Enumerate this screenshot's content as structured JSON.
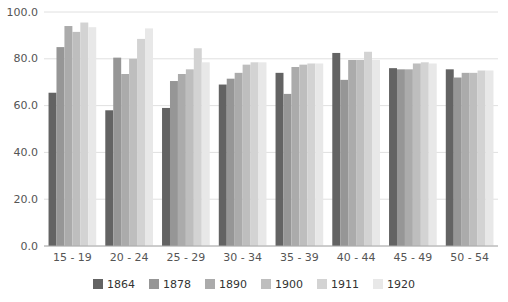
{
  "chart_data": {
    "type": "bar",
    "categories": [
      "15 - 19",
      "20 - 24",
      "25 - 29",
      "30 - 34",
      "35 - 39",
      "40 - 44",
      "45 - 49",
      "50 - 54"
    ],
    "series": [
      {
        "name": "1864",
        "color": "#636363",
        "values": [
          65.5,
          58.0,
          59.0,
          69.0,
          74.0,
          82.5,
          76.0,
          75.5
        ]
      },
      {
        "name": "1878",
        "color": "#969696",
        "values": [
          85.0,
          80.5,
          70.5,
          71.5,
          65.0,
          71.0,
          75.5,
          72.0
        ]
      },
      {
        "name": "1890",
        "color": "#ababab",
        "values": [
          94.0,
          73.5,
          73.5,
          74.0,
          76.5,
          79.5,
          75.5,
          74.0
        ]
      },
      {
        "name": "1900",
        "color": "#bebebe",
        "values": [
          91.5,
          80.0,
          75.5,
          77.5,
          77.5,
          79.5,
          78.0,
          74.0
        ]
      },
      {
        "name": "1911",
        "color": "#d3d3d3",
        "values": [
          95.5,
          88.5,
          84.5,
          78.5,
          78.0,
          83.0,
          78.5,
          75.0
        ]
      },
      {
        "name": "1920",
        "color": "#e8e8e8",
        "values": [
          93.5,
          93.0,
          78.5,
          78.5,
          78.0,
          79.5,
          78.0,
          75.0
        ]
      }
    ],
    "ylim": [
      0.0,
      100.0
    ],
    "yticks": [
      {
        "value": 0.0,
        "label": "0.0"
      },
      {
        "value": 20.0,
        "label": "20.0"
      },
      {
        "value": 40.0,
        "label": "40.0"
      },
      {
        "value": 60.0,
        "label": "60.0"
      },
      {
        "value": 80.0,
        "label": "80.0"
      },
      {
        "value": 100.0,
        "label": "100.0"
      }
    ],
    "grid": true,
    "legend": "bottom"
  }
}
